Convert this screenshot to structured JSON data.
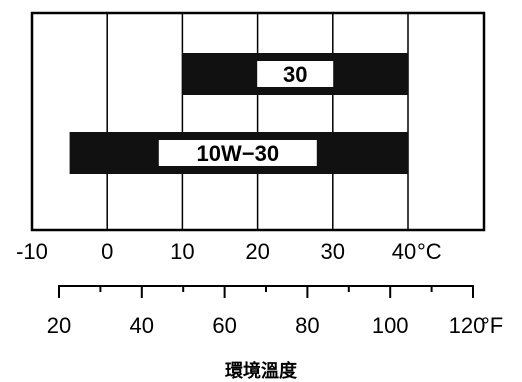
{
  "chart_data": {
    "type": "bar",
    "orientation": "horizontal",
    "bars": [
      {
        "label": "30",
        "start": 10,
        "end": 40
      },
      {
        "label": "10W−30",
        "start": -5,
        "end": 40
      }
    ],
    "xlim": [
      -10,
      40
    ],
    "grid_x": [
      0,
      10,
      20,
      30,
      40
    ],
    "grid": true,
    "celsius_ticks": [
      "-10",
      "0",
      "10",
      "20",
      "30",
      "40"
    ],
    "celsius_unit": "°C",
    "fahrenheit_ticks": [
      "20",
      "40",
      "60",
      "80",
      "100",
      "120"
    ],
    "fahrenheit_values": [
      20,
      40,
      60,
      80,
      100,
      120
    ],
    "fahrenheit_minor": [
      30,
      50,
      70,
      90,
      110
    ],
    "fahrenheit_unit": "°F",
    "xlabel": "環境溫度",
    "colors": {
      "bar": "#111111",
      "label_box": "#ffffff",
      "line": "#000000"
    }
  }
}
